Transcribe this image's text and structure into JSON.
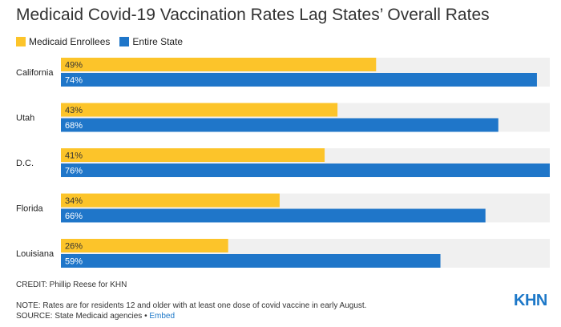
{
  "title": "Medicaid Covid-19 Vaccination Rates Lag States’ Overall Rates",
  "legend": [
    {
      "label": "Medicaid Enrollees",
      "color": "#fcc42a"
    },
    {
      "label": "Entire State",
      "color": "#1f76c9"
    }
  ],
  "colors": {
    "track": "#f0f0f0",
    "medicaid": "#fcc42a",
    "state": "#1f76c9"
  },
  "chart_data": {
    "type": "bar",
    "orientation": "horizontal",
    "categories": [
      "California",
      "Utah",
      "D.C.",
      "Florida",
      "Louisiana"
    ],
    "series": [
      {
        "name": "Medicaid Enrollees",
        "values": [
          49,
          43,
          41,
          34,
          26
        ],
        "labels": [
          "49%",
          "43%",
          "41%",
          "34%",
          "26%"
        ]
      },
      {
        "name": "Entire State",
        "values": [
          74,
          68,
          76,
          66,
          59
        ],
        "labels": [
          "74%",
          "68%",
          "76%",
          "66%",
          "59%"
        ]
      }
    ],
    "xlim": [
      0,
      76
    ],
    "grid": false,
    "legend_position": "top-left"
  },
  "footer": {
    "credit": "CREDIT: Phillip Reese for KHN",
    "note": "NOTE: Rates are for residents 12 and older with at least one dose of covid vaccine in early August.",
    "source_prefix": "SOURCE: State Medicaid agencies • ",
    "embed": "Embed",
    "logo": "KHN"
  }
}
